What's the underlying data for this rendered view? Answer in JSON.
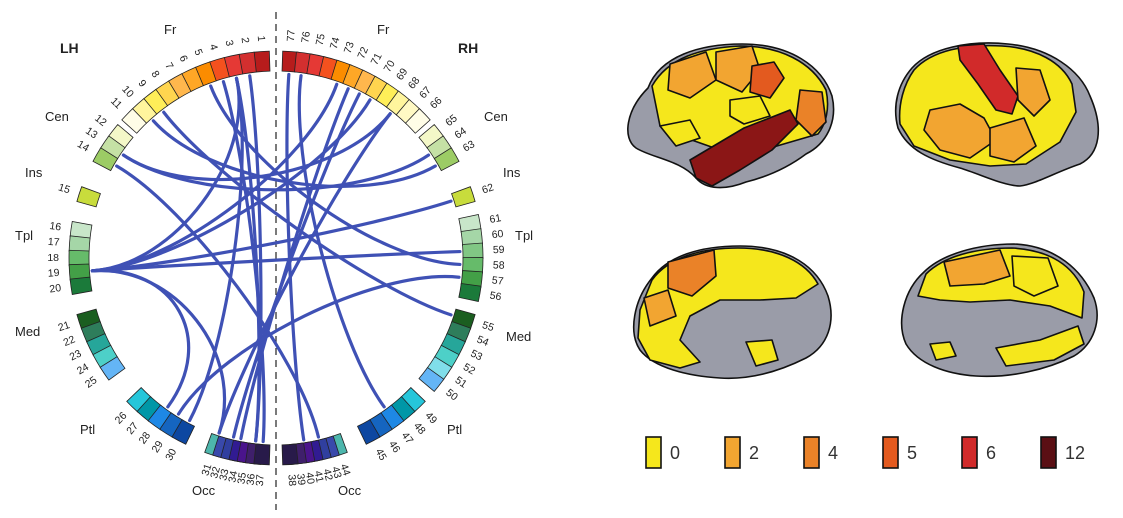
{
  "hemispheres": {
    "left": "LH",
    "right": "RH"
  },
  "lobes": {
    "left": [
      {
        "label": "Fr"
      },
      {
        "label": "Cen"
      },
      {
        "label": "Ins"
      },
      {
        "label": "Tpl"
      },
      {
        "label": "Med"
      },
      {
        "label": "Ptl"
      },
      {
        "label": "Occ"
      }
    ],
    "right": [
      {
        "label": "Fr"
      },
      {
        "label": "Cen"
      },
      {
        "label": "Ins"
      },
      {
        "label": "Tpl"
      },
      {
        "label": "Med"
      },
      {
        "label": "Ptl"
      },
      {
        "label": "Occ"
      }
    ]
  },
  "segments": {
    "left": [
      {
        "n": "1",
        "color": "#b71c1c"
      },
      {
        "n": "2",
        "color": "#d32f2f"
      },
      {
        "n": "3",
        "color": "#e53935"
      },
      {
        "n": "4",
        "color": "#f4511e"
      },
      {
        "n": "5",
        "color": "#fb8c00"
      },
      {
        "n": "6",
        "color": "#ffa726"
      },
      {
        "n": "7",
        "color": "#ffb74d"
      },
      {
        "n": "8",
        "color": "#ffd54f"
      },
      {
        "n": "9",
        "color": "#ffee58"
      },
      {
        "n": "10",
        "color": "#fff59d"
      },
      {
        "n": "11",
        "color": "#fffde7"
      },
      {
        "n": "12",
        "color": "#f4f8c8"
      },
      {
        "n": "13",
        "color": "#c5e1a5"
      },
      {
        "n": "14",
        "color": "#9ccc65"
      },
      {
        "n": "15",
        "color": "#c8dc3c"
      },
      {
        "n": "16",
        "color": "#c8e6c9"
      },
      {
        "n": "17",
        "color": "#a5d6a7"
      },
      {
        "n": "18",
        "color": "#66bb6a"
      },
      {
        "n": "19",
        "color": "#43a047"
      },
      {
        "n": "20",
        "color": "#1b7a3a"
      },
      {
        "n": "21",
        "color": "#1b5e20"
      },
      {
        "n": "22",
        "color": "#2e7d5b"
      },
      {
        "n": "23",
        "color": "#26a69a"
      },
      {
        "n": "24",
        "color": "#4dd0c8"
      },
      {
        "n": "25",
        "color": "#64b5f6"
      },
      {
        "n": "26",
        "color": "#26c6da"
      },
      {
        "n": "27",
        "color": "#0097a7"
      },
      {
        "n": "28",
        "color": "#1e88e5"
      },
      {
        "n": "29",
        "color": "#1565c0"
      },
      {
        "n": "30",
        "color": "#0d47a1"
      },
      {
        "n": "31",
        "color": "#4db6ac"
      },
      {
        "n": "32",
        "color": "#3949ab"
      },
      {
        "n": "33",
        "color": "#303f9f"
      },
      {
        "n": "34",
        "color": "#311b92"
      },
      {
        "n": "35",
        "color": "#4a148c"
      },
      {
        "n": "36",
        "color": "#3f1f6b"
      },
      {
        "n": "37",
        "color": "#281a4a"
      }
    ],
    "right": [
      {
        "n": "77",
        "color": "#b71c1c"
      },
      {
        "n": "76",
        "color": "#d32f2f"
      },
      {
        "n": "75",
        "color": "#e53935"
      },
      {
        "n": "74",
        "color": "#f4511e"
      },
      {
        "n": "73",
        "color": "#fb8c00"
      },
      {
        "n": "72",
        "color": "#ffa726"
      },
      {
        "n": "71",
        "color": "#ffb74d"
      },
      {
        "n": "70",
        "color": "#ffd54f"
      },
      {
        "n": "69",
        "color": "#ffee58"
      },
      {
        "n": "68",
        "color": "#fff59d"
      },
      {
        "n": "67",
        "color": "#fff9c4"
      },
      {
        "n": "66",
        "color": "#fffde7"
      },
      {
        "n": "65",
        "color": "#f4f8c8"
      },
      {
        "n": "64",
        "color": "#c5e1a5"
      },
      {
        "n": "63",
        "color": "#9ccc65"
      },
      {
        "n": "62",
        "color": "#c8dc3c"
      },
      {
        "n": "61",
        "color": "#c8e6c9"
      },
      {
        "n": "60",
        "color": "#a5d6a7"
      },
      {
        "n": "59",
        "color": "#81c784"
      },
      {
        "n": "58",
        "color": "#66bb6a"
      },
      {
        "n": "57",
        "color": "#43a047"
      },
      {
        "n": "56",
        "color": "#1b7a3a"
      },
      {
        "n": "55",
        "color": "#1b5e20"
      },
      {
        "n": "54",
        "color": "#2e7d5b"
      },
      {
        "n": "53",
        "color": "#26a69a"
      },
      {
        "n": "52",
        "color": "#4dd0c8"
      },
      {
        "n": "51",
        "color": "#80deea"
      },
      {
        "n": "50",
        "color": "#64b5f6"
      },
      {
        "n": "49",
        "color": "#26c6da"
      },
      {
        "n": "48",
        "color": "#0097a7"
      },
      {
        "n": "47",
        "color": "#1e88e5"
      },
      {
        "n": "46",
        "color": "#1565c0"
      },
      {
        "n": "45",
        "color": "#0d47a1"
      },
      {
        "n": "44",
        "color": "#4db6ac"
      },
      {
        "n": "43",
        "color": "#3949ab"
      },
      {
        "n": "42",
        "color": "#303f9f"
      },
      {
        "n": "41",
        "color": "#311b92"
      },
      {
        "n": "40",
        "color": "#4a148c"
      },
      {
        "n": "39",
        "color": "#3f1f6b"
      },
      {
        "n": "38",
        "color": "#281a4a"
      }
    ]
  },
  "edge_color": "#3f51b5",
  "connections": [
    [
      "3",
      "19"
    ],
    [
      "3",
      "30"
    ],
    [
      "4",
      "37"
    ],
    [
      "3",
      "36"
    ],
    [
      "2",
      "36"
    ],
    [
      "19",
      "73"
    ],
    [
      "19",
      "62"
    ],
    [
      "19",
      "59"
    ],
    [
      "19",
      "70"
    ],
    [
      "19",
      "28"
    ],
    [
      "19",
      "31"
    ],
    [
      "13",
      "68"
    ],
    [
      "13",
      "64"
    ],
    [
      "10",
      "63"
    ],
    [
      "76",
      "47"
    ],
    [
      "72",
      "34"
    ],
    [
      "71",
      "33"
    ],
    [
      "68",
      "31"
    ],
    [
      "29",
      "57"
    ],
    [
      "5",
      "58"
    ],
    [
      "9",
      "55"
    ],
    [
      "14",
      "42"
    ],
    [
      "77",
      "40"
    ]
  ],
  "legend": [
    {
      "value": "0",
      "color": "#f5e71c"
    },
    {
      "value": "2",
      "color": "#f2a531"
    },
    {
      "value": "4",
      "color": "#ea8228"
    },
    {
      "value": "5",
      "color": "#e35a1f"
    },
    {
      "value": "6",
      "color": "#d12a2a"
    },
    {
      "value": "12",
      "color": "#5a0f14"
    }
  ],
  "brain_views": [
    "lateral-left",
    "lateral-right",
    "medial-left",
    "medial-right"
  ],
  "brain_colors": {
    "gray": "#9a9ca8",
    "outline": "#111111"
  }
}
